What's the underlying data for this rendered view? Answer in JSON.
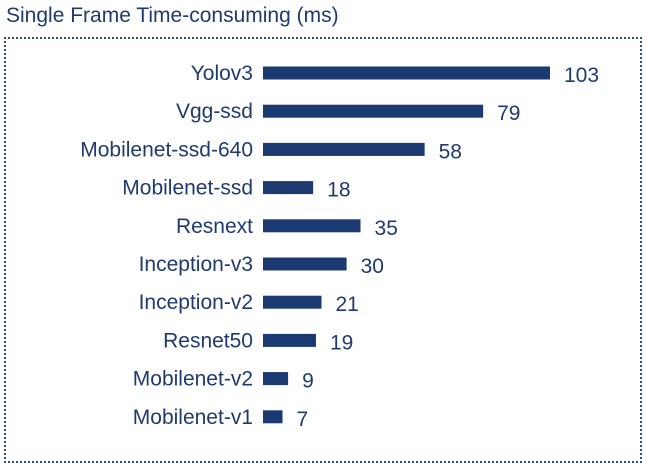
{
  "chart_data": {
    "type": "bar",
    "orientation": "horizontal",
    "title": "Single Frame Time-consuming (ms)",
    "categories": [
      "Yolov3",
      "Vgg-ssd",
      "Mobilenet-ssd-640",
      "Mobilenet-ssd",
      "Resnext",
      "Inception-v3",
      "Inception-v2",
      "Resnet50",
      "Mobilenet-v2",
      "Mobilenet-v1"
    ],
    "values": [
      103,
      79,
      58,
      18,
      35,
      30,
      21,
      19,
      9,
      7
    ],
    "data_labels": [
      "103",
      "79",
      "58",
      "18",
      "35",
      "30",
      "21",
      "19",
      "9",
      "7"
    ],
    "xlim": [
      0,
      110
    ],
    "grid": false,
    "legend": "none",
    "colors": {
      "bar": "#1b3a72",
      "text": "#1f3b6e",
      "border": "#2f4f7f"
    }
  }
}
